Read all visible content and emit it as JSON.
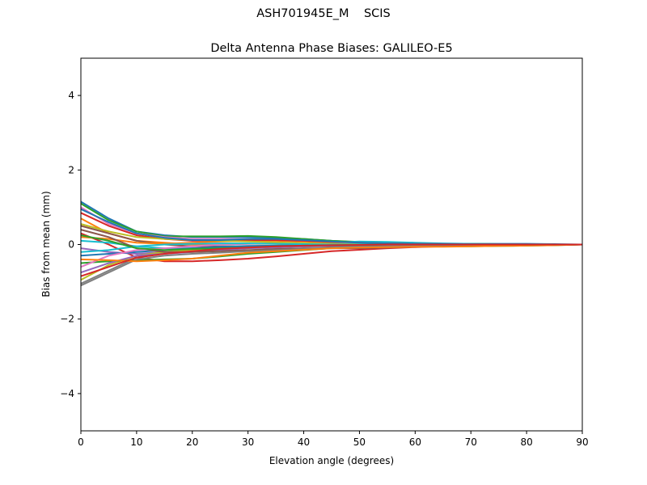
{
  "chart_data": {
    "type": "line",
    "suptitle": "ASH701945E_M    SCIS",
    "title": "Delta Antenna Phase Biases: GALILEO-E5",
    "xlabel": "Elevation angle (degrees)",
    "ylabel": "Bias from mean (mm)",
    "xlim": [
      0,
      90
    ],
    "ylim": [
      -5,
      5
    ],
    "xticks": [
      0,
      10,
      20,
      30,
      40,
      50,
      60,
      70,
      80,
      90
    ],
    "yticks": [
      -4,
      -2,
      0,
      2,
      4
    ],
    "ytick_labels": [
      "−4",
      "−2",
      "0",
      "2",
      "4"
    ],
    "grid": false,
    "colors": [
      "#1f77b4",
      "#ff7f0e",
      "#2ca02c",
      "#d62728",
      "#9467bd",
      "#8c564b",
      "#e377c2",
      "#7f7f7f",
      "#bcbd22",
      "#17becf"
    ],
    "x": [
      0,
      5,
      10,
      15,
      20,
      25,
      30,
      35,
      40,
      45,
      50,
      55,
      60,
      65,
      70,
      75,
      80,
      85,
      90
    ],
    "series": [
      {
        "values": [
          1.15,
          0.7,
          0.35,
          0.25,
          0.2,
          0.2,
          0.2,
          0.18,
          0.15,
          0.1,
          0.06,
          0.05,
          0.03,
          0.02,
          0.02,
          0.02,
          0.02,
          0.01,
          0
        ]
      },
      {
        "values": [
          0.7,
          0.3,
          0.1,
          0.05,
          0.0,
          0.0,
          0.02,
          0.02,
          0.0,
          -0.02,
          -0.02,
          -0.02,
          -0.02,
          -0.02,
          -0.01,
          -0.01,
          -0.01,
          0,
          0
        ]
      },
      {
        "values": [
          1.1,
          0.65,
          0.35,
          0.22,
          0.22,
          0.22,
          0.23,
          0.2,
          0.15,
          0.1,
          0.07,
          0.04,
          0.03,
          0.02,
          0.02,
          0.01,
          0.01,
          0,
          0
        ]
      },
      {
        "values": [
          0.3,
          0.0,
          -0.35,
          -0.45,
          -0.45,
          -0.42,
          -0.38,
          -0.32,
          -0.25,
          -0.18,
          -0.14,
          -0.1,
          -0.07,
          -0.05,
          -0.04,
          -0.03,
          -0.02,
          -0.01,
          0
        ]
      },
      {
        "values": [
          -0.1,
          -0.2,
          -0.25,
          -0.2,
          -0.15,
          -0.1,
          -0.08,
          -0.06,
          -0.05,
          -0.04,
          -0.03,
          -0.02,
          -0.02,
          -0.01,
          -0.01,
          -0.01,
          0,
          0,
          0
        ]
      },
      {
        "values": [
          0.5,
          0.3,
          0.1,
          0.0,
          -0.05,
          -0.05,
          -0.05,
          -0.05,
          -0.05,
          -0.05,
          -0.05,
          -0.05,
          -0.04,
          -0.03,
          -0.02,
          -0.02,
          -0.01,
          0,
          0
        ]
      },
      {
        "values": [
          1.0,
          0.55,
          0.3,
          0.2,
          0.15,
          0.15,
          0.15,
          0.12,
          0.1,
          0.06,
          0.04,
          0.03,
          0.02,
          0.02,
          0.01,
          0.01,
          0.01,
          0,
          0
        ]
      },
      {
        "values": [
          -1.05,
          -0.7,
          -0.35,
          -0.2,
          -0.15,
          -0.1,
          -0.08,
          -0.06,
          -0.05,
          -0.03,
          -0.02,
          -0.02,
          -0.01,
          -0.01,
          -0.01,
          0,
          0,
          0,
          0
        ]
      },
      {
        "values": [
          -0.95,
          -0.55,
          -0.3,
          -0.2,
          -0.15,
          -0.1,
          -0.05,
          -0.03,
          -0.02,
          -0.01,
          -0.01,
          0,
          0,
          0,
          0,
          0,
          0,
          0,
          0
        ]
      },
      {
        "values": [
          0.1,
          0.05,
          -0.05,
          -0.1,
          -0.1,
          -0.1,
          -0.08,
          -0.05,
          -0.02,
          0.05,
          0.08,
          0.07,
          0.05,
          0.03,
          0.02,
          0.01,
          0.01,
          0,
          0
        ]
      },
      {
        "values": [
          -0.3,
          -0.25,
          -0.2,
          -0.15,
          -0.1,
          -0.06,
          -0.04,
          -0.03,
          -0.02,
          -0.01,
          0,
          0,
          0,
          0,
          0,
          0,
          0,
          0,
          0
        ]
      },
      {
        "values": [
          0.2,
          0.15,
          0.05,
          0.02,
          0.05,
          0.08,
          0.1,
          0.1,
          0.08,
          0.06,
          0.04,
          0.03,
          0.02,
          0.01,
          0.01,
          0.01,
          0,
          0,
          0
        ]
      },
      {
        "values": [
          -0.5,
          -0.45,
          -0.42,
          -0.4,
          -0.38,
          -0.32,
          -0.25,
          -0.2,
          -0.15,
          -0.1,
          -0.08,
          -0.06,
          -0.05,
          -0.05,
          -0.05,
          -0.04,
          -0.03,
          -0.02,
          0
        ]
      },
      {
        "values": [
          0.85,
          0.5,
          0.25,
          0.15,
          0.1,
          0.1,
          0.12,
          0.12,
          0.1,
          0.07,
          0.05,
          0.03,
          0.02,
          0.01,
          0.01,
          0.01,
          0,
          0,
          0
        ]
      },
      {
        "values": [
          -0.75,
          -0.5,
          -0.3,
          -0.25,
          -0.2,
          -0.15,
          -0.1,
          -0.08,
          -0.05,
          -0.03,
          -0.02,
          -0.01,
          -0.01,
          0,
          0,
          0,
          0,
          0,
          0
        ]
      },
      {
        "values": [
          0.4,
          0.2,
          -0.1,
          -0.2,
          -0.2,
          -0.18,
          -0.15,
          -0.12,
          -0.1,
          -0.1,
          -0.1,
          -0.08,
          -0.06,
          -0.05,
          -0.04,
          -0.03,
          -0.02,
          -0.01,
          0
        ]
      },
      {
        "values": [
          -0.6,
          -0.3,
          -0.15,
          -0.1,
          -0.05,
          0,
          0.02,
          0.03,
          0.03,
          0.02,
          0.02,
          0.01,
          0.01,
          0.01,
          0,
          0,
          0,
          0,
          0
        ]
      },
      {
        "values": [
          -1.1,
          -0.75,
          -0.4,
          -0.3,
          -0.25,
          -0.22,
          -0.18,
          -0.15,
          -0.12,
          -0.08,
          -0.05,
          -0.04,
          -0.03,
          -0.02,
          -0.02,
          -0.01,
          -0.01,
          0,
          0
        ]
      },
      {
        "values": [
          0.55,
          0.35,
          0.2,
          0.15,
          0.12,
          0.1,
          0.08,
          0.06,
          0.04,
          0.02,
          0.01,
          0,
          0,
          0,
          0,
          0,
          0,
          0,
          0
        ]
      },
      {
        "values": [
          -0.2,
          -0.15,
          -0.05,
          0.0,
          0.02,
          0.03,
          0.03,
          0.02,
          0.01,
          0,
          0,
          0,
          0,
          0,
          0,
          0,
          0,
          0,
          0
        ]
      },
      {
        "values": [
          0.95,
          0.6,
          0.3,
          0.18,
          0.12,
          0.12,
          0.15,
          0.15,
          0.12,
          0.08,
          0.05,
          0.03,
          0.02,
          0.02,
          0.01,
          0.01,
          0.01,
          0,
          0
        ]
      },
      {
        "values": [
          -0.4,
          -0.42,
          -0.45,
          -0.42,
          -0.38,
          -0.3,
          -0.22,
          -0.18,
          -0.14,
          -0.1,
          -0.08,
          -0.07,
          -0.06,
          -0.06,
          -0.05,
          -0.04,
          -0.03,
          -0.02,
          0
        ]
      },
      {
        "values": [
          0.25,
          0.1,
          -0.1,
          -0.15,
          -0.12,
          -0.1,
          -0.08,
          -0.05,
          -0.03,
          -0.02,
          -0.01,
          0,
          0,
          0,
          0,
          0,
          0,
          0,
          0
        ]
      },
      {
        "values": [
          -0.85,
          -0.6,
          -0.35,
          -0.25,
          -0.18,
          -0.12,
          -0.08,
          -0.05,
          -0.03,
          -0.02,
          -0.01,
          0,
          0,
          0,
          0,
          0,
          0,
          0,
          0
        ]
      }
    ]
  }
}
